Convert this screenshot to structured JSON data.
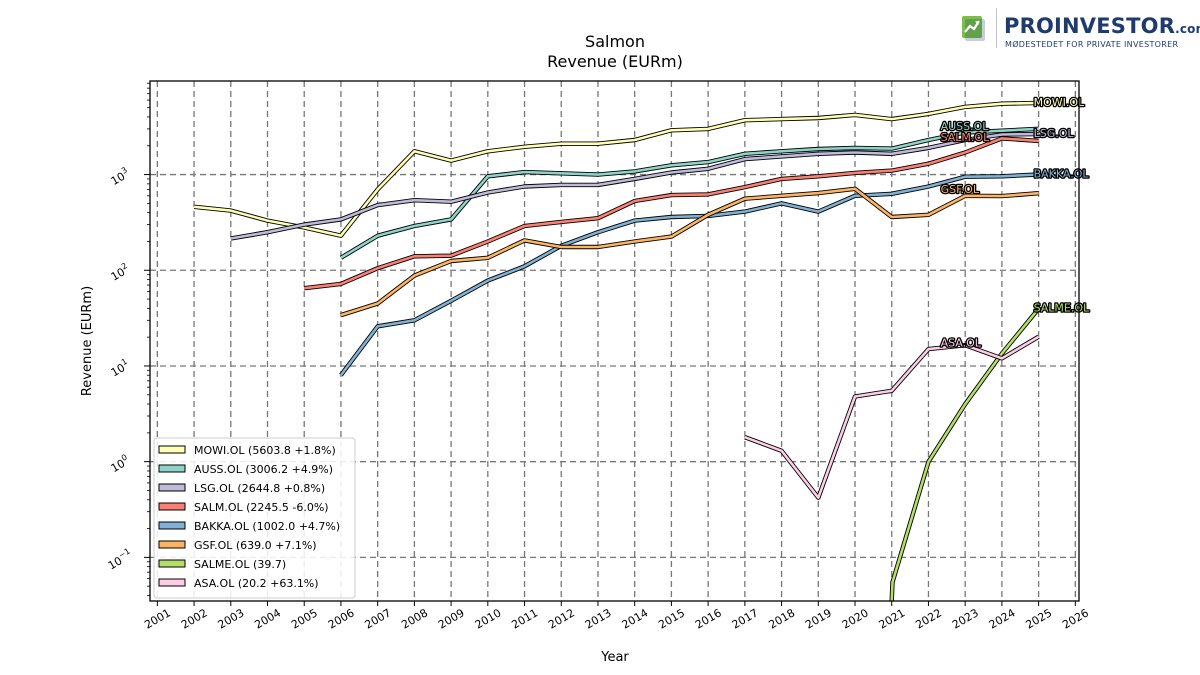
{
  "brand": {
    "name": "PROINVESTOR",
    "suffix": ".com",
    "tagline": "MØDESTEDET FOR PRIVATE INVESTORER"
  },
  "chart_data": {
    "type": "line",
    "title": "Salmon",
    "subtitle": "Revenue (EURm)",
    "xlabel": "Year",
    "ylabel": "Revenue (EURm)",
    "yscale": "log",
    "xlim": [
      2000.8,
      2026.1
    ],
    "ylim": [
      0.035,
      9500
    ],
    "x_ticks": [
      2001,
      2002,
      2003,
      2004,
      2005,
      2006,
      2007,
      2008,
      2009,
      2010,
      2011,
      2012,
      2013,
      2014,
      2015,
      2016,
      2017,
      2018,
      2019,
      2020,
      2021,
      2022,
      2023,
      2024,
      2025,
      2026
    ],
    "y_ticks": [
      {
        "value": 0.1,
        "mantissa": "10",
        "exponent": "−1"
      },
      {
        "value": 1,
        "mantissa": "10",
        "exponent": "0"
      },
      {
        "value": 10,
        "mantissa": "10",
        "exponent": "1"
      },
      {
        "value": 100,
        "mantissa": "10",
        "exponent": "2"
      },
      {
        "value": 1000,
        "mantissa": "10",
        "exponent": "3"
      }
    ],
    "grid": true,
    "legend_position": "lower-left",
    "series": [
      {
        "name": "MOWI.OL",
        "legend": "MOWI.OL (5603.8 +1.8%)",
        "color": "#ffffb3",
        "end_label": "MOWI.OL",
        "x": [
          2002,
          2003,
          2004,
          2005,
          2006,
          2007,
          2008,
          2009,
          2010,
          2011,
          2012,
          2013,
          2014,
          2015,
          2016,
          2017,
          2018,
          2019,
          2020,
          2021,
          2022,
          2023,
          2024,
          2025
        ],
        "y": [
          460,
          420,
          330,
          280,
          230,
          700,
          1750,
          1400,
          1750,
          1950,
          2100,
          2100,
          2300,
          2900,
          3000,
          3700,
          3800,
          3900,
          4200,
          3800,
          4300,
          5100,
          5500,
          5603.8
        ]
      },
      {
        "name": "AUSS.OL",
        "legend": "AUSS.OL (3006.2 +4.9%)",
        "color": "#8dd3c7",
        "end_label": "AUSS.OL",
        "x": [
          2006,
          2007,
          2008,
          2009,
          2010,
          2011,
          2012,
          2013,
          2014,
          2015,
          2016,
          2017,
          2018,
          2019,
          2020,
          2021,
          2022,
          2023,
          2024,
          2025
        ],
        "y": [
          135,
          230,
          290,
          340,
          960,
          1060,
          1030,
          1000,
          1080,
          1250,
          1350,
          1650,
          1750,
          1850,
          1900,
          1870,
          2300,
          2750,
          2870,
          3006.2
        ]
      },
      {
        "name": "LSG.OL",
        "legend": "LSG.OL (2644.8 +0.8%)",
        "color": "#bebada",
        "end_label": "LSG.OL",
        "x": [
          2003,
          2004,
          2005,
          2006,
          2007,
          2008,
          2009,
          2010,
          2011,
          2012,
          2013,
          2014,
          2015,
          2016,
          2017,
          2018,
          2019,
          2020,
          2021,
          2022,
          2023,
          2024,
          2025
        ],
        "y": [
          215,
          250,
          300,
          340,
          480,
          540,
          520,
          650,
          750,
          780,
          780,
          900,
          1050,
          1150,
          1450,
          1550,
          1650,
          1700,
          1650,
          1900,
          2300,
          2620,
          2644.8
        ]
      },
      {
        "name": "SALM.OL",
        "legend": "SALM.OL (2245.5 -6.0%)",
        "color": "#fb8072",
        "end_label": "SALM.OL",
        "x": [
          2005,
          2006,
          2007,
          2008,
          2009,
          2010,
          2011,
          2012,
          2013,
          2014,
          2015,
          2016,
          2017,
          2018,
          2019,
          2020,
          2021,
          2022,
          2023,
          2024,
          2025
        ],
        "y": [
          65,
          72,
          105,
          140,
          142,
          200,
          290,
          320,
          350,
          530,
          610,
          620,
          740,
          900,
          960,
          1040,
          1100,
          1300,
          1700,
          2390,
          2245.5
        ]
      },
      {
        "name": "BAKKA.OL",
        "legend": "BAKKA.OL (1002.0 +4.7%)",
        "color": "#80b1d3",
        "end_label": "BAKKA.OL",
        "x": [
          2006,
          2007,
          2008,
          2009,
          2010,
          2011,
          2012,
          2013,
          2014,
          2015,
          2016,
          2017,
          2018,
          2019,
          2020,
          2021,
          2022,
          2023,
          2024,
          2025
        ],
        "y": [
          8,
          26,
          30,
          48,
          78,
          110,
          180,
          250,
          330,
          360,
          370,
          410,
          500,
          410,
          600,
          630,
          750,
          950,
          960,
          1002.0
        ]
      },
      {
        "name": "GSF.OL",
        "legend": "GSF.OL (639.0 +7.1%)",
        "color": "#fdb462",
        "end_label": "GSF.OL",
        "x": [
          2006,
          2007,
          2008,
          2009,
          2010,
          2011,
          2012,
          2013,
          2014,
          2015,
          2016,
          2017,
          2018,
          2019,
          2020,
          2021,
          2022,
          2023,
          2024,
          2025
        ],
        "y": [
          34,
          45,
          88,
          125,
          135,
          205,
          175,
          175,
          200,
          225,
          380,
          560,
          600,
          640,
          710,
          360,
          380,
          600,
          595,
          639.0
        ]
      },
      {
        "name": "SALME.OL",
        "legend": "SALME.OL (39.7)",
        "color": "#b3de69",
        "end_label": "SALME.OL",
        "x": [
          2021,
          2021.02,
          2022,
          2023,
          2024,
          2025
        ],
        "y": [
          0.035,
          0.055,
          1.0,
          4.0,
          13.5,
          39.7
        ]
      },
      {
        "name": "ASA.OL",
        "legend": "ASA.OL (20.2 +63.1%)",
        "color": "#fccde5",
        "end_label": "ASA.OL",
        "x": [
          2017,
          2018,
          2019,
          2020,
          2021,
          2022,
          2023,
          2024,
          2025
        ],
        "y": [
          1.8,
          1.3,
          0.42,
          4.8,
          5.5,
          15,
          16.5,
          12,
          20.2
        ]
      }
    ]
  }
}
